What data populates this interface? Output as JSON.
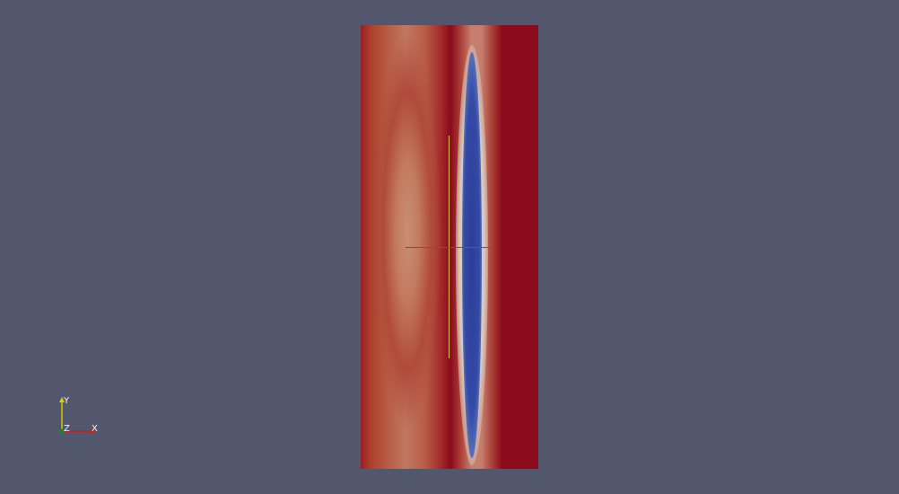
{
  "viewport": {
    "background_color": "#52576e"
  },
  "render": {
    "colormap": {
      "high_color": "#8b0a1c",
      "mid_color": "#d9c7bd",
      "low_color": "#2c3d98"
    }
  },
  "probe": {
    "vertical_line_color": "#e2c44a",
    "horizontal_line_color": "#e8202a"
  },
  "orientation_axes": {
    "x_label": "X",
    "y_label": "Y",
    "z_label": "Z",
    "x_color": "#d11c1c",
    "y_color": "#e0d000",
    "z_color": "#1e8a1e"
  }
}
